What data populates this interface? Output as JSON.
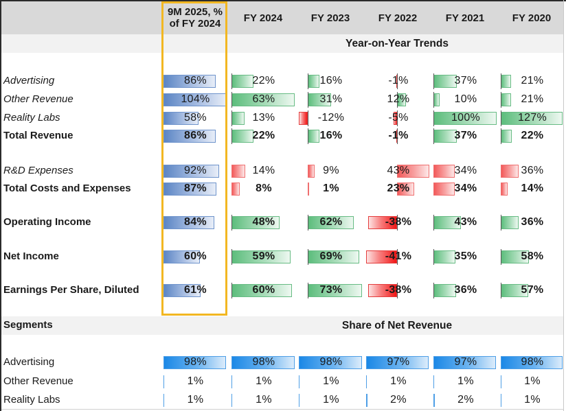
{
  "columns": [
    {
      "label": "9M 2025, % of FY 2024",
      "line1": "9M 2025, %",
      "line2": "of FY 2024"
    },
    {
      "label": "FY 2024"
    },
    {
      "label": "FY 2023"
    },
    {
      "label": "FY 2022"
    },
    {
      "label": "FY 2021"
    },
    {
      "label": "FY 2020"
    }
  ],
  "sections": {
    "yoy_title": "Year-on-Year Trends",
    "segments_label": "Segments",
    "share_title": "Share of Net Revenue"
  },
  "colors": {
    "highlight_border": "#f2b722",
    "ytd_bar": "#5b85c4",
    "growth_positive": "#5cbd7c",
    "cost_increase": "#f25a5a",
    "negative": "#f21616",
    "share_bar": "#1b88e6"
  },
  "trend_rows": [
    {
      "label": "Advertising",
      "style": "italic",
      "kind": "revenue",
      "ytd": {
        "text": "86%",
        "value": 86
      },
      "values": [
        {
          "text": "22%",
          "value": 22
        },
        {
          "text": "16%",
          "value": 16
        },
        {
          "text": "-1%",
          "value": -1
        },
        {
          "text": "37%",
          "value": 37
        },
        {
          "text": "21%",
          "value": 21
        }
      ]
    },
    {
      "label": "Other Revenue",
      "style": "italic",
      "kind": "revenue",
      "ytd": {
        "text": "104%",
        "value": 104
      },
      "values": [
        {
          "text": "63%",
          "value": 63
        },
        {
          "text": "31%",
          "value": 31
        },
        {
          "text": "12%",
          "value": 12
        },
        {
          "text": "10%",
          "value": 10
        },
        {
          "text": "21%",
          "value": 21
        }
      ]
    },
    {
      "label": "Reality Labs",
      "style": "italic",
      "kind": "revenue",
      "ytd": {
        "text": "58%",
        "value": 58
      },
      "values": [
        {
          "text": "13%",
          "value": 13
        },
        {
          "text": "-12%",
          "value": -12
        },
        {
          "text": "-5%",
          "value": -5
        },
        {
          "text": "100%",
          "value": 100
        },
        {
          "text": "127%",
          "value": 127
        }
      ]
    },
    {
      "label": "Total Revenue",
      "style": "bold",
      "kind": "revenue",
      "ytd": {
        "text": "86%",
        "value": 86
      },
      "values": [
        {
          "text": "22%",
          "value": 22
        },
        {
          "text": "16%",
          "value": 16
        },
        {
          "text": "-1%",
          "value": -1
        },
        {
          "text": "37%",
          "value": 37
        },
        {
          "text": "22%",
          "value": 22
        }
      ]
    },
    {
      "label": "R&D Expenses",
      "style": "italic",
      "kind": "cost",
      "ytd": {
        "text": "92%",
        "value": 92
      },
      "values": [
        {
          "text": "14%",
          "value": 14
        },
        {
          "text": "9%",
          "value": 9
        },
        {
          "text": "43%",
          "value": 43
        },
        {
          "text": "34%",
          "value": 34
        },
        {
          "text": "36%",
          "value": 36
        }
      ]
    },
    {
      "label": "Total Costs and Expenses",
      "style": "bold",
      "kind": "cost",
      "ytd": {
        "text": "87%",
        "value": 87
      },
      "values": [
        {
          "text": "8%",
          "value": 8
        },
        {
          "text": "1%",
          "value": 1
        },
        {
          "text": "23%",
          "value": 23
        },
        {
          "text": "34%",
          "value": 34
        },
        {
          "text": "14%",
          "value": 14
        }
      ]
    },
    {
      "label": "Operating Income",
      "style": "bold",
      "kind": "income",
      "ytd": {
        "text": "84%",
        "value": 84
      },
      "values": [
        {
          "text": "48%",
          "value": 48
        },
        {
          "text": "62%",
          "value": 62
        },
        {
          "text": "-38%",
          "value": -38
        },
        {
          "text": "43%",
          "value": 43
        },
        {
          "text": "36%",
          "value": 36
        }
      ]
    },
    {
      "label": "Net Income",
      "style": "bold",
      "kind": "income",
      "ytd": {
        "text": "60%",
        "value": 60
      },
      "values": [
        {
          "text": "59%",
          "value": 59
        },
        {
          "text": "69%",
          "value": 69
        },
        {
          "text": "-41%",
          "value": -41
        },
        {
          "text": "35%",
          "value": 35
        },
        {
          "text": "58%",
          "value": 58
        }
      ]
    },
    {
      "label": "Earnings Per Share, Diluted",
      "style": "bold",
      "kind": "income",
      "ytd": {
        "text": "61%",
        "value": 61
      },
      "values": [
        {
          "text": "60%",
          "value": 60
        },
        {
          "text": "73%",
          "value": 73
        },
        {
          "text": "-38%",
          "value": -38
        },
        {
          "text": "36%",
          "value": 36
        },
        {
          "text": "57%",
          "value": 57
        }
      ]
    }
  ],
  "share_rows": [
    {
      "label": "Advertising",
      "values": [
        {
          "text": "98%",
          "value": 98
        },
        {
          "text": "98%",
          "value": 98
        },
        {
          "text": "98%",
          "value": 98
        },
        {
          "text": "97%",
          "value": 97
        },
        {
          "text": "97%",
          "value": 97
        },
        {
          "text": "98%",
          "value": 98
        }
      ]
    },
    {
      "label": "Other Revenue",
      "values": [
        {
          "text": "1%",
          "value": 1
        },
        {
          "text": "1%",
          "value": 1
        },
        {
          "text": "1%",
          "value": 1
        },
        {
          "text": "1%",
          "value": 1
        },
        {
          "text": "1%",
          "value": 1
        },
        {
          "text": "1%",
          "value": 1
        }
      ]
    },
    {
      "label": "Reality Labs",
      "values": [
        {
          "text": "1%",
          "value": 1
        },
        {
          "text": "1%",
          "value": 1
        },
        {
          "text": "1%",
          "value": 1
        },
        {
          "text": "2%",
          "value": 2
        },
        {
          "text": "2%",
          "value": 2
        },
        {
          "text": "1%",
          "value": 1
        }
      ]
    }
  ]
}
